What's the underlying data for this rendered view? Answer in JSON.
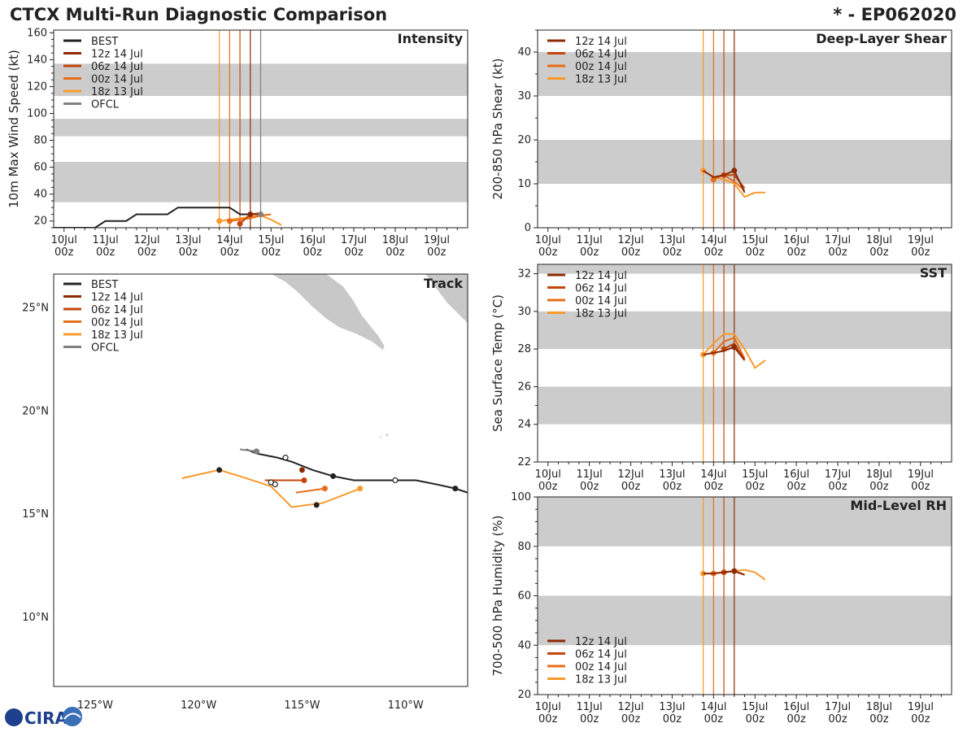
{
  "header": {
    "title": "CTCX Multi-Run Diagnostic Comparison",
    "storm": "* - EP062020"
  },
  "logo": {
    "text": "CIRA"
  },
  "colors": {
    "BEST": "#222222",
    "OFCL": "#808080",
    "12z 14 Jul": "#8b2a05",
    "06z 14 Jul": "#c4450b",
    "00z 14 Jul": "#e76d18",
    "18z 13 Jul": "#f99a2c",
    "band": "#cccccc"
  },
  "time_ticks": {
    "days": [
      "10Jul",
      "11Jul",
      "12Jul",
      "13Jul",
      "14Jul",
      "15Jul",
      "16Jul",
      "17Jul",
      "18Jul",
      "19Jul"
    ],
    "hours": [
      "00z",
      "00z",
      "00z",
      "00z",
      "00z",
      "00z",
      "00z",
      "00z",
      "00z",
      "00z"
    ]
  },
  "chart_data": [
    {
      "id": "intensity",
      "type": "line",
      "title": "Intensity",
      "ylabel": "10m Max Wind Speed (kt)",
      "xlabel": "",
      "x_units": "days since 10Jul 00z",
      "xlim": [
        -0.25,
        9.75
      ],
      "ylim": [
        15,
        162
      ],
      "yticks": [
        20,
        40,
        60,
        80,
        100,
        120,
        140,
        160
      ],
      "bands": [
        [
          34,
          64
        ],
        [
          83,
          96
        ],
        [
          113,
          137
        ]
      ],
      "legend": [
        "BEST",
        "12z 14 Jul",
        "06z 14 Jul",
        "00z 14 Jul",
        "18z 13 Jul",
        "OFCL"
      ],
      "vlines": [
        {
          "run": "18z 13 Jul",
          "x": 3.75
        },
        {
          "run": "00z 14 Jul",
          "x": 4.0
        },
        {
          "run": "06z 14 Jul",
          "x": 4.25
        },
        {
          "run": "12z 14 Jul",
          "x": 4.5
        },
        {
          "run": "OFCL",
          "x": 4.75
        }
      ],
      "series": [
        {
          "name": "BEST",
          "x": [
            -0.25,
            0.75,
            1.0,
            1.5,
            1.75,
            2.5,
            2.75,
            4.0,
            4.25,
            4.75
          ],
          "y": [
            15,
            15,
            20,
            20,
            25,
            25,
            30,
            30,
            25,
            25
          ],
          "marker_x": []
        },
        {
          "name": "18z 13 Jul",
          "x": [
            3.75,
            4.0,
            4.25,
            4.5,
            4.75,
            5.0,
            5.25
          ],
          "y": [
            20,
            21,
            22,
            23,
            24,
            21,
            17
          ],
          "marker_x": [
            3.75
          ]
        },
        {
          "name": "00z 14 Jul",
          "x": [
            4.0,
            4.25,
            4.5,
            4.75,
            5.0
          ],
          "y": [
            20,
            21,
            22,
            24,
            25
          ],
          "marker_x": [
            4.0
          ]
        },
        {
          "name": "06z 14 Jul",
          "x": [
            4.25,
            4.5,
            4.75
          ],
          "y": [
            18,
            25,
            26
          ],
          "marker_x": [
            4.25
          ]
        },
        {
          "name": "12z 14 Jul",
          "x": [
            4.5,
            4.75
          ],
          "y": [
            25,
            25
          ],
          "marker_x": [
            4.5
          ]
        },
        {
          "name": "OFCL",
          "x": [
            4.75
          ],
          "y": [
            25
          ],
          "marker_x": [
            4.75
          ]
        }
      ]
    },
    {
      "id": "shear",
      "type": "line",
      "title": "Deep-Layer Shear",
      "ylabel": "200-850 hPa Shear (kt)",
      "xlabel": "",
      "x_units": "days since 10Jul 00z",
      "xlim": [
        -0.25,
        9.75
      ],
      "ylim": [
        0,
        45
      ],
      "yticks": [
        0,
        10,
        20,
        30,
        40
      ],
      "bands": [
        [
          10,
          20
        ],
        [
          30,
          40
        ]
      ],
      "legend": [
        "12z 14 Jul",
        "06z 14 Jul",
        "00z 14 Jul",
        "18z 13 Jul"
      ],
      "vlines": [
        {
          "run": "18z 13 Jul",
          "x": 3.75
        },
        {
          "run": "00z 14 Jul",
          "x": 4.0
        },
        {
          "run": "06z 14 Jul",
          "x": 4.25
        },
        {
          "run": "12z 14 Jul",
          "x": 4.5
        }
      ],
      "series": [
        {
          "name": "18z 13 Jul",
          "x": [
            3.75,
            4.0,
            4.25,
            4.5,
            4.75,
            5.0,
            5.25
          ],
          "y": [
            13,
            11.5,
            11,
            10,
            7,
            8,
            8
          ],
          "marker_x": [
            3.75
          ]
        },
        {
          "name": "00z 14 Jul",
          "x": [
            4.0,
            4.25,
            4.5,
            4.75
          ],
          "y": [
            11,
            12,
            10.5,
            8.5
          ],
          "marker_x": [
            4.0
          ]
        },
        {
          "name": "06z 14 Jul",
          "x": [
            4.25,
            4.5,
            4.75
          ],
          "y": [
            12,
            12,
            9
          ],
          "marker_x": [
            4.25
          ]
        },
        {
          "name": "12z 14 Jul",
          "x": [
            3.75,
            4.0,
            4.25,
            4.5,
            4.75
          ],
          "y": [
            13,
            11.5,
            12,
            13,
            8
          ],
          "marker_x": [
            4.5
          ]
        }
      ]
    },
    {
      "id": "sst",
      "type": "line",
      "title": "SST",
      "ylabel": "Sea Surface Temp (°C)",
      "xlabel": "",
      "x_units": "days since 10Jul 00z",
      "xlim": [
        -0.25,
        9.75
      ],
      "ylim": [
        22,
        32.5
      ],
      "yticks": [
        22,
        24,
        26,
        28,
        30,
        32
      ],
      "bands": [
        [
          24,
          26
        ],
        [
          28,
          30
        ],
        [
          32,
          33
        ]
      ],
      "legend": [
        "12z 14 Jul",
        "06z 14 Jul",
        "00z 14 Jul",
        "18z 13 Jul"
      ],
      "vlines": [
        {
          "run": "18z 13 Jul",
          "x": 3.75
        },
        {
          "run": "00z 14 Jul",
          "x": 4.0
        },
        {
          "run": "06z 14 Jul",
          "x": 4.25
        },
        {
          "run": "12z 14 Jul",
          "x": 4.5
        }
      ],
      "series": [
        {
          "name": "18z 13 Jul",
          "x": [
            3.75,
            4.0,
            4.25,
            4.5,
            4.75,
            5.0,
            5.25
          ],
          "y": [
            27.7,
            28.3,
            28.8,
            28.8,
            28.0,
            27.0,
            27.4
          ],
          "marker_x": [
            3.75
          ]
        },
        {
          "name": "00z 14 Jul",
          "x": [
            4.0,
            4.25,
            4.5,
            4.75
          ],
          "y": [
            27.8,
            28.4,
            28.6,
            27.5
          ],
          "marker_x": [
            4.0
          ]
        },
        {
          "name": "06z 14 Jul",
          "x": [
            4.25,
            4.5,
            4.75
          ],
          "y": [
            28.0,
            28.3,
            27.4
          ],
          "marker_x": [
            4.25
          ]
        },
        {
          "name": "12z 14 Jul",
          "x": [
            3.75,
            4.0,
            4.25,
            4.5,
            4.75
          ],
          "y": [
            27.7,
            27.8,
            27.9,
            28.1,
            27.4
          ],
          "marker_x": [
            4.5
          ]
        }
      ]
    },
    {
      "id": "rh",
      "type": "line",
      "title": "Mid-Level RH",
      "ylabel": "700-500 hPa Humidity (%)",
      "xlabel": "",
      "x_units": "days since 10Jul 00z",
      "xlim": [
        -0.25,
        9.75
      ],
      "ylim": [
        20,
        100
      ],
      "yticks": [
        20,
        40,
        60,
        80,
        100
      ],
      "bands": [
        [
          40,
          60
        ],
        [
          80,
          100
        ]
      ],
      "legend": [
        "12z 14 Jul",
        "06z 14 Jul",
        "00z 14 Jul",
        "18z 13 Jul"
      ],
      "vlines": [
        {
          "run": "18z 13 Jul",
          "x": 3.75
        },
        {
          "run": "00z 14 Jul",
          "x": 4.0
        },
        {
          "run": "06z 14 Jul",
          "x": 4.25
        },
        {
          "run": "12z 14 Jul",
          "x": 4.5
        }
      ],
      "series": [
        {
          "name": "18z 13 Jul",
          "x": [
            3.75,
            4.0,
            4.25,
            4.5,
            4.75,
            5.0,
            5.25
          ],
          "y": [
            69,
            69,
            69.5,
            70,
            70.5,
            69.5,
            66.5
          ],
          "marker_x": [
            3.75
          ]
        },
        {
          "name": "00z 14 Jul",
          "x": [
            4.0,
            4.25,
            4.5,
            4.75
          ],
          "y": [
            69,
            69.5,
            70,
            68.5
          ],
          "marker_x": [
            4.0
          ]
        },
        {
          "name": "06z 14 Jul",
          "x": [
            4.25,
            4.5,
            4.75
          ],
          "y": [
            69.5,
            70,
            68.5
          ],
          "marker_x": [
            4.25
          ]
        },
        {
          "name": "12z 14 Jul",
          "x": [
            3.75,
            4.0,
            4.25,
            4.5,
            4.75
          ],
          "y": [
            69,
            69,
            69.5,
            70,
            68.5
          ],
          "marker_x": [
            4.5
          ]
        }
      ]
    },
    {
      "id": "track",
      "type": "scatter",
      "title": "Track",
      "xlabel": "",
      "ylabel": "",
      "xlim": [
        -127.0,
        -107.0
      ],
      "ylim": [
        6.6,
        26.6
      ],
      "xticks": [
        -125,
        -120,
        -115,
        -110
      ],
      "xticklabels": [
        "125°W",
        "120°W",
        "115°W",
        "110°W"
      ],
      "yticks": [
        10,
        15,
        20,
        25
      ],
      "yticklabels": [
        "10°N",
        "15°N",
        "20°N",
        "25°N"
      ],
      "legend": [
        "BEST",
        "12z 14 Jul",
        "06z 14 Jul",
        "00z 14 Jul",
        "18z 13 Jul",
        "OFCL"
      ],
      "series": [
        {
          "name": "BEST",
          "lon": [
            -107.0,
            -107.6,
            -108.5,
            -109.5,
            -110.5,
            -111.5,
            -112.5,
            -113.5,
            -114.5,
            -115.5,
            -116.2,
            -117.2,
            -117.7
          ],
          "lat": [
            16.0,
            16.2,
            16.4,
            16.6,
            16.6,
            16.6,
            16.6,
            16.8,
            17.1,
            17.5,
            17.7,
            17.9,
            18.1
          ],
          "filled": [
            [
              -107.6,
              16.2
            ],
            [
              -113.5,
              16.8
            ],
            [
              -117.2,
              18.0
            ]
          ],
          "open": [
            [
              -110.5,
              16.6
            ],
            [
              -115.8,
              17.7
            ]
          ]
        },
        {
          "name": "OFCL",
          "lon": [
            -117.2,
            -118.0
          ],
          "lat": [
            18.0,
            18.1
          ],
          "filled": [
            [
              -117.2,
              18.0
            ]
          ],
          "open": []
        },
        {
          "name": "12z 14 Jul",
          "lon": [
            -115.0
          ],
          "lat": [
            17.1
          ],
          "filled": [
            [
              -115.0,
              17.1
            ]
          ],
          "open": []
        },
        {
          "name": "06z 14 Jul",
          "lon": [
            -116.8,
            -114.9
          ],
          "lat": [
            16.6,
            16.6
          ],
          "filled": [
            [
              -114.9,
              16.6
            ]
          ],
          "open": []
        },
        {
          "name": "00z 14 Jul",
          "lon": [
            -115.3,
            -113.9
          ],
          "lat": [
            16.0,
            16.2
          ],
          "filled": [
            [
              -113.9,
              16.2
            ]
          ],
          "open": []
        },
        {
          "name": "18z 13 Jul",
          "lon": [
            -120.8,
            -119.0,
            -117.7,
            -116.5,
            -115.5,
            -114.0,
            -112.2
          ],
          "lat": [
            16.7,
            17.1,
            16.7,
            16.3,
            15.3,
            15.5,
            16.2
          ],
          "filled": [
            [
              -112.2,
              16.2
            ]
          ],
          "open": []
        },
        {
          "name": "extra_points",
          "lon": [],
          "lat": [],
          "filled": [
            [
              -119.0,
              17.1
            ],
            [
              -114.3,
              15.4
            ]
          ],
          "open": [
            [
              -116.5,
              16.5
            ],
            [
              -116.3,
              16.4
            ]
          ]
        }
      ]
    }
  ]
}
